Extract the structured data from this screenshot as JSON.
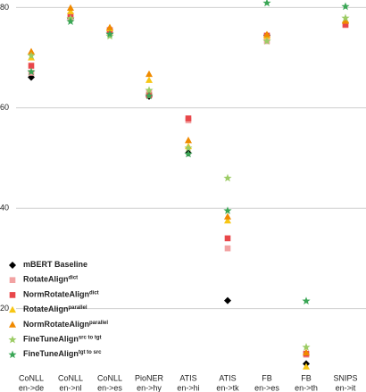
{
  "chart_data": {
    "type": "scatter",
    "categories": [
      [
        "CoNLL",
        "en->de"
      ],
      [
        "CoNLL",
        "en->nl"
      ],
      [
        "CoNLL",
        "en->es"
      ],
      [
        "PioNER",
        "en->hy"
      ],
      [
        "ATIS",
        "en->hi"
      ],
      [
        "ATIS",
        "en->tk"
      ],
      [
        "FB",
        "en->es"
      ],
      [
        "FB",
        "en->th"
      ],
      [
        "SNIPS",
        "en->it"
      ]
    ],
    "ylim": [
      8,
      81.5
    ],
    "yticks": [
      20,
      40,
      60,
      80
    ],
    "grid": true,
    "legend": "bottom-left",
    "series": [
      {
        "name": "mBERT Baseline",
        "color": "#000000",
        "marker": "diamond",
        "values": [
          66.1,
          77.8,
          74.9,
          62.3,
          51.0,
          21.6,
          74.5,
          9.0,
          77.0
        ]
      },
      {
        "name": "RotateAlign",
        "name_sup": "dict",
        "color": "#f2a2a2",
        "marker": "square",
        "values": [
          67.0,
          78.0,
          75.0,
          63.0,
          57.5,
          32.0,
          73.3,
          10.8,
          76.5
        ]
      },
      {
        "name": "NormRotateAlign",
        "name_sup": "dict",
        "color": "#e8474a",
        "marker": "square",
        "values": [
          68.4,
          78.4,
          75.5,
          62.5,
          57.9,
          34.0,
          74.4,
          11.0,
          76.6
        ]
      },
      {
        "name": "RotateAlign",
        "name_sup": "parallel",
        "color": "#f7c614",
        "marker": "triangle",
        "values": [
          70.0,
          79.2,
          75.8,
          65.5,
          52.3,
          37.5,
          74.3,
          8.4,
          77.5
        ]
      },
      {
        "name": "NormRotateAlign",
        "name_sup": "parallel",
        "color": "#f08a00",
        "marker": "triangle",
        "values": [
          71.2,
          79.9,
          76.0,
          66.7,
          53.5,
          38.3,
          74.6,
          11.2,
          77.3
        ]
      },
      {
        "name": "FineTuneAlign",
        "name_sup": "src to tgt",
        "color": "#9ccc65",
        "marker": "star",
        "values": [
          70.4,
          77.8,
          74.3,
          63.5,
          52.0,
          46.0,
          73.3,
          12.3,
          77.9
        ]
      },
      {
        "name": "FineTuneAlign",
        "name_sup": "tgt to src",
        "color": "#3aa655",
        "marker": "star",
        "values": [
          67.2,
          77.2,
          74.7,
          62.4,
          50.8,
          39.5,
          80.9,
          21.5,
          80.2
        ]
      }
    ]
  }
}
